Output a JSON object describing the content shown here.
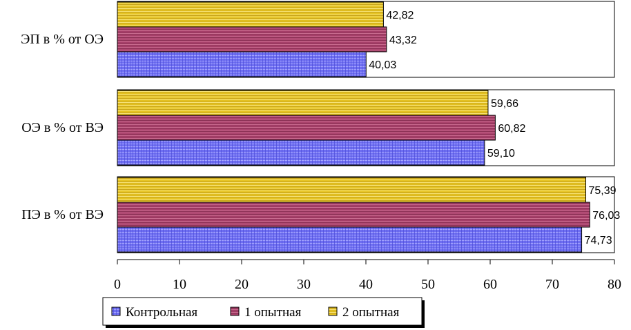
{
  "chart_data": {
    "type": "bar",
    "orientation": "horizontal",
    "categories": [
      "ЭП в % от ОЭ",
      "ОЭ в % от ВЭ",
      "ПЭ в % от ВЭ"
    ],
    "series": [
      {
        "name": "2 опытная",
        "values": [
          42.82,
          59.66,
          75.39
        ],
        "labels": [
          "42,82",
          "59,66",
          "75,39"
        ],
        "color": "#e6c321",
        "pattern": "horizontal-stripes"
      },
      {
        "name": "1 опытная",
        "values": [
          43.32,
          60.82,
          76.03
        ],
        "labels": [
          "43,32",
          "60,82",
          "76,03"
        ],
        "color": "#a8406a",
        "pattern": "horizontal-stripes"
      },
      {
        "name": "Контрольная",
        "values": [
          40.03,
          59.1,
          74.73
        ],
        "labels": [
          "40,03",
          "59,10",
          "74,73"
        ],
        "color": "#6f6ff2",
        "pattern": "crosshatch"
      }
    ],
    "xlim": [
      0,
      80
    ],
    "xticks": [
      "0",
      "10",
      "20",
      "30",
      "40",
      "50",
      "60",
      "70",
      "80"
    ],
    "legend": {
      "position": "bottom",
      "items": [
        "Контрольная",
        "1 опытная",
        "2 опытная"
      ]
    },
    "grid": false
  }
}
